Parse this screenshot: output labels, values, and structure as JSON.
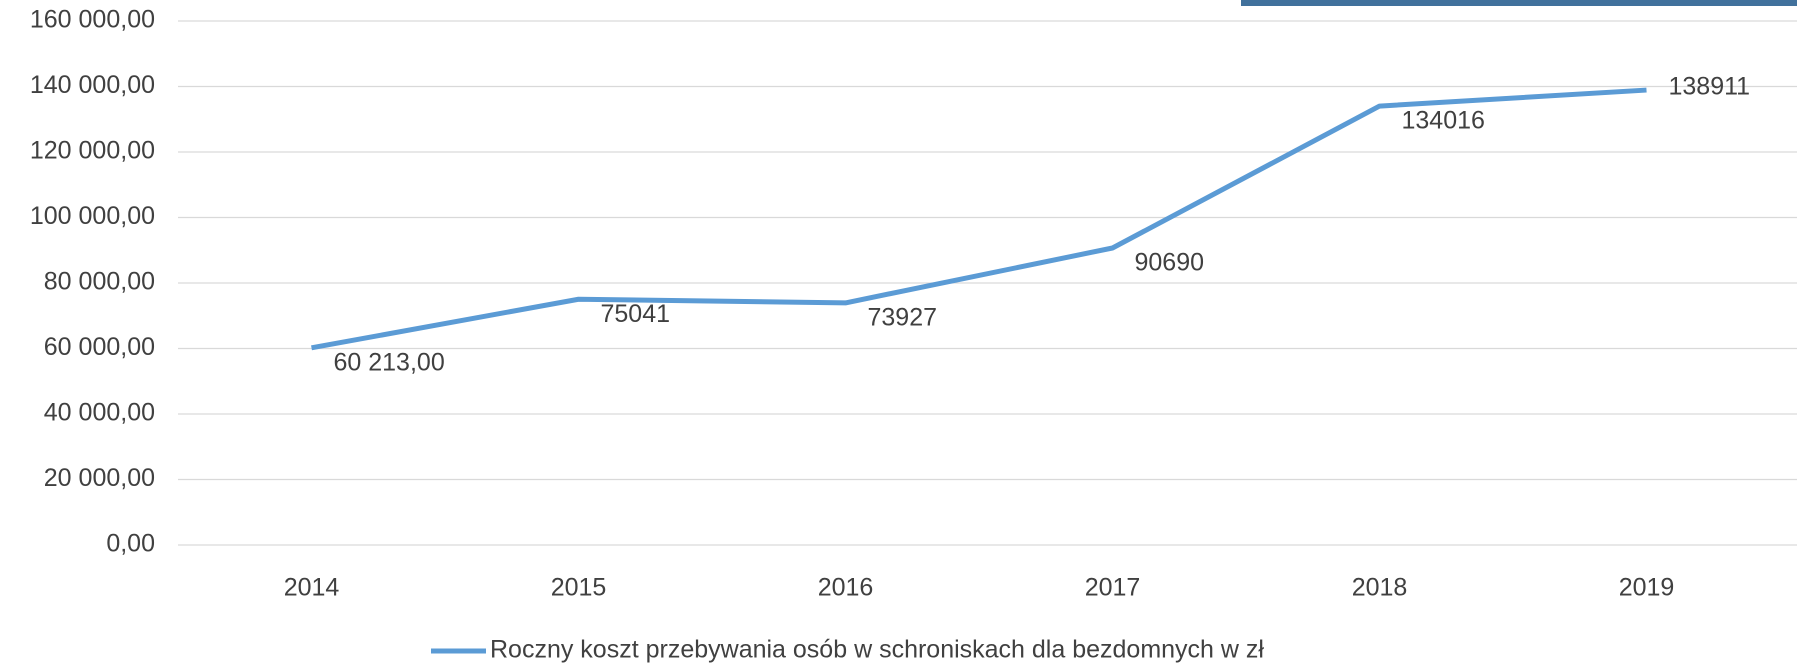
{
  "chart_data": {
    "type": "line",
    "categories": [
      "2014",
      "2015",
      "2016",
      "2017",
      "2018",
      "2019"
    ],
    "series": [
      {
        "name": "Roczny koszt przebywania osób w schroniskach dla bezdomnych w zł",
        "color": "#5b9bd5",
        "values": [
          60213,
          75041,
          73927,
          90690,
          134016,
          138911
        ],
        "value_labels": [
          "60 213,00",
          "75041",
          "73927",
          "90690",
          "134016",
          "138911"
        ]
      }
    ],
    "ylim": [
      0,
      160000
    ],
    "yticks": [
      {
        "value": 0,
        "label": "0,00"
      },
      {
        "value": 20000,
        "label": "20 000,00"
      },
      {
        "value": 40000,
        "label": "40 000,00"
      },
      {
        "value": 60000,
        "label": "60 000,00"
      },
      {
        "value": 80000,
        "label": "80 000,00"
      },
      {
        "value": 100000,
        "label": "100 000,00"
      },
      {
        "value": 120000,
        "label": "120 000,00"
      },
      {
        "value": 140000,
        "label": "140 000,00"
      },
      {
        "value": 160000,
        "label": "160 000,00"
      }
    ],
    "grid": true,
    "legend": "bottom"
  }
}
